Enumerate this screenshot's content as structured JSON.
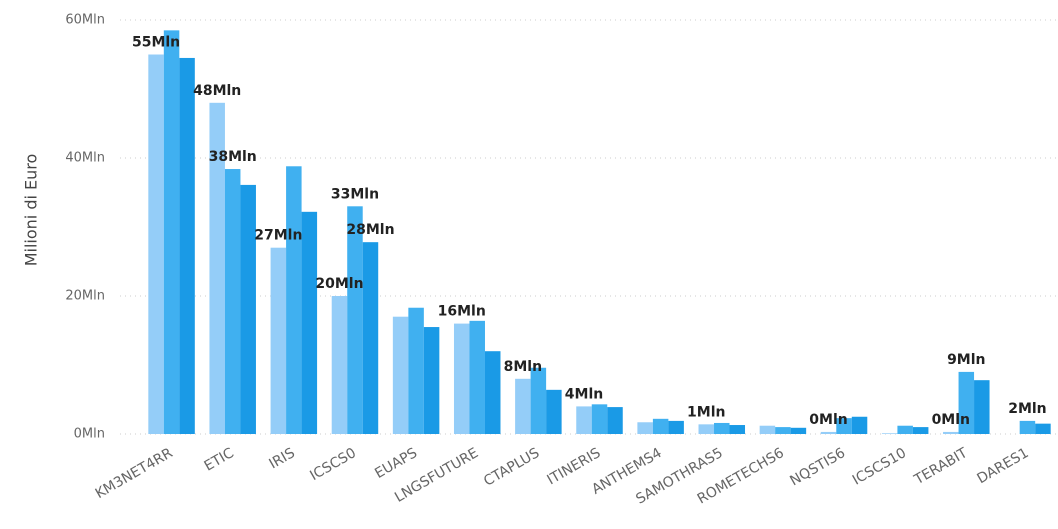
{
  "chart_data": {
    "type": "bar",
    "y_label": "Milioni di Euro",
    "categories": [
      "KM3NET4RR",
      "ETIC",
      "IRIS",
      "ICSCS0",
      "EUAPS",
      "LNGSFUTURE",
      "CTAPLUS",
      "ITINERIS",
      "ANTHEMS4",
      "SAMOTHRAS5",
      "ROMETECHS6",
      "NQSTIS6",
      "ICSCS10",
      "TERABIT",
      "DARES1"
    ],
    "series": [
      {
        "color": "#94cdf8",
        "values": [
          55,
          48,
          27,
          20,
          17,
          16,
          8,
          4,
          1.7,
          1.4,
          1.2,
          0.3,
          0.1,
          0.3,
          0
        ],
        "value_labels": [
          "55Mln",
          "48Mln",
          "27Mln",
          "20Mln",
          null,
          "16Mln",
          "8Mln",
          "4Mln",
          null,
          "1Mln",
          null,
          "0Mln",
          null,
          "0Mln",
          null
        ]
      },
      {
        "color": "#40b0f0",
        "values": [
          58.5,
          38.4,
          38.8,
          33,
          18.3,
          16.4,
          9.6,
          4.3,
          2.2,
          1.6,
          1.0,
          2.3,
          1.2,
          9,
          1.9
        ],
        "value_labels": [
          null,
          "38Mln",
          null,
          "33Mln",
          null,
          null,
          null,
          null,
          null,
          null,
          null,
          null,
          null,
          "9Mln",
          "2Mln"
        ]
      },
      {
        "color": "#1a9ae6",
        "values": [
          54.5,
          36.1,
          32.2,
          27.8,
          15.5,
          12,
          6.4,
          3.9,
          1.9,
          1.3,
          0.9,
          2.5,
          1.0,
          7.8,
          1.5
        ],
        "value_labels": [
          null,
          null,
          null,
          "28Mln",
          null,
          null,
          null,
          null,
          null,
          null,
          null,
          null,
          null,
          null,
          null
        ]
      }
    ],
    "ylim": [
      0,
      60
    ],
    "yticks": [
      {
        "value": 0,
        "label": "0Mln"
      },
      {
        "value": 20,
        "label": "20Mln"
      },
      {
        "value": 40,
        "label": "40Mln"
      },
      {
        "value": 60,
        "label": "60Mln"
      }
    ],
    "grid": true
  }
}
